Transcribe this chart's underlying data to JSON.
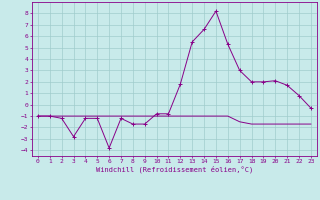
{
  "xlabel": "Windchill (Refroidissement éolien,°C)",
  "line1_x": [
    0,
    1,
    2,
    3,
    4,
    5,
    6,
    7,
    8,
    9,
    10,
    11,
    12,
    13,
    14,
    15,
    16,
    17,
    18,
    19,
    20,
    21,
    22,
    23
  ],
  "line1_y": [
    -1.0,
    -1.0,
    -1.2,
    -2.8,
    -1.2,
    -1.2,
    -3.8,
    -1.2,
    -1.7,
    -1.7,
    -0.8,
    -0.8,
    1.8,
    5.5,
    6.6,
    8.2,
    5.3,
    3.0,
    2.0,
    2.0,
    2.1,
    1.7,
    0.8,
    -0.3
  ],
  "line2_x": [
    0,
    1,
    2,
    3,
    4,
    5,
    6,
    7,
    8,
    9,
    10,
    11,
    12,
    13,
    14,
    15,
    16,
    17,
    18,
    19,
    20,
    21,
    22,
    23
  ],
  "line2_y": [
    -1.0,
    -1.0,
    -1.0,
    -1.0,
    -1.0,
    -1.0,
    -1.0,
    -1.0,
    -1.0,
    -1.0,
    -1.0,
    -1.0,
    -1.0,
    -1.0,
    -1.0,
    -1.0,
    -1.0,
    -1.5,
    -1.7,
    -1.7,
    -1.7,
    -1.7,
    -1.7,
    -1.7
  ],
  "line_color": "#880088",
  "bg_color": "#c8eaea",
  "grid_color": "#a0cccc",
  "ylim": [
    -4.5,
    9.0
  ],
  "xlim": [
    -0.5,
    23.5
  ],
  "yticks": [
    -4,
    -3,
    -2,
    -1,
    0,
    1,
    2,
    3,
    4,
    5,
    6,
    7,
    8
  ],
  "xticks": [
    0,
    1,
    2,
    3,
    4,
    5,
    6,
    7,
    8,
    9,
    10,
    11,
    12,
    13,
    14,
    15,
    16,
    17,
    18,
    19,
    20,
    21,
    22,
    23
  ],
  "tick_fontsize": 4.5,
  "xlabel_fontsize": 5.0
}
